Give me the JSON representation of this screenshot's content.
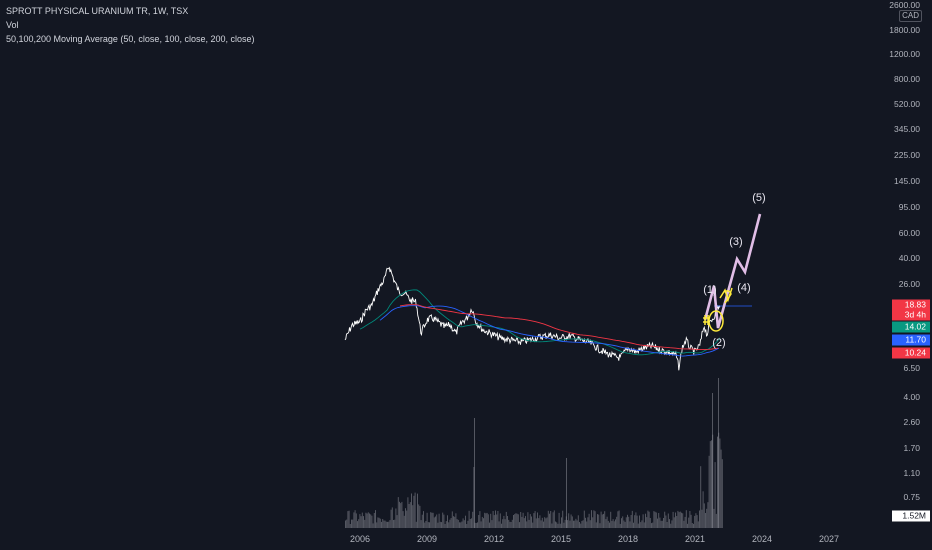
{
  "legend": {
    "symbol_line": "SPROTT PHYSICAL URANIUM TR, 1W, TSX",
    "volume_line": "Vol",
    "ma_line": "50,100,200 Moving Average (50, close, 100, close, 200, close)"
  },
  "price_axis": {
    "currency_label": "CAD",
    "ticks": [
      "2600.00",
      "1800.00",
      "1200.00",
      "800.00",
      "520.00",
      "345.00",
      "225.00",
      "145.00",
      "95.00",
      "60.00",
      "40.00",
      "26.00",
      "6.50"
    ],
    "badges": [
      {
        "label": "18.83",
        "color": "#f23645"
      },
      {
        "label": "3d 4h",
        "color": "#f23645"
      },
      {
        "label": "14.02",
        "color": "#089981"
      },
      {
        "label": "11.70",
        "color": "#2962ff"
      },
      {
        "label": "10.24",
        "color": "#f23645"
      }
    ]
  },
  "volume_axis": {
    "ticks": [
      "4.00",
      "2.60",
      "1.70",
      "1.10",
      "0.75"
    ],
    "last_volume": "1.52M"
  },
  "time_axis": {
    "labels": [
      "2006",
      "2009",
      "2012",
      "2015",
      "2018",
      "2021",
      "2024",
      "2027"
    ]
  },
  "wave_labels": [
    "(1)",
    "(2)",
    "(3)",
    "(4)",
    "(5)"
  ],
  "colors": {
    "background": "#131722",
    "price_line": "#ffffff",
    "ma50": "#00897b",
    "ma100": "#2962ff",
    "ma200": "#f23645",
    "projection": "#e1bee7",
    "annotation_yellow": "#ffeb3b",
    "volume_bars": "#8a8d96"
  }
}
